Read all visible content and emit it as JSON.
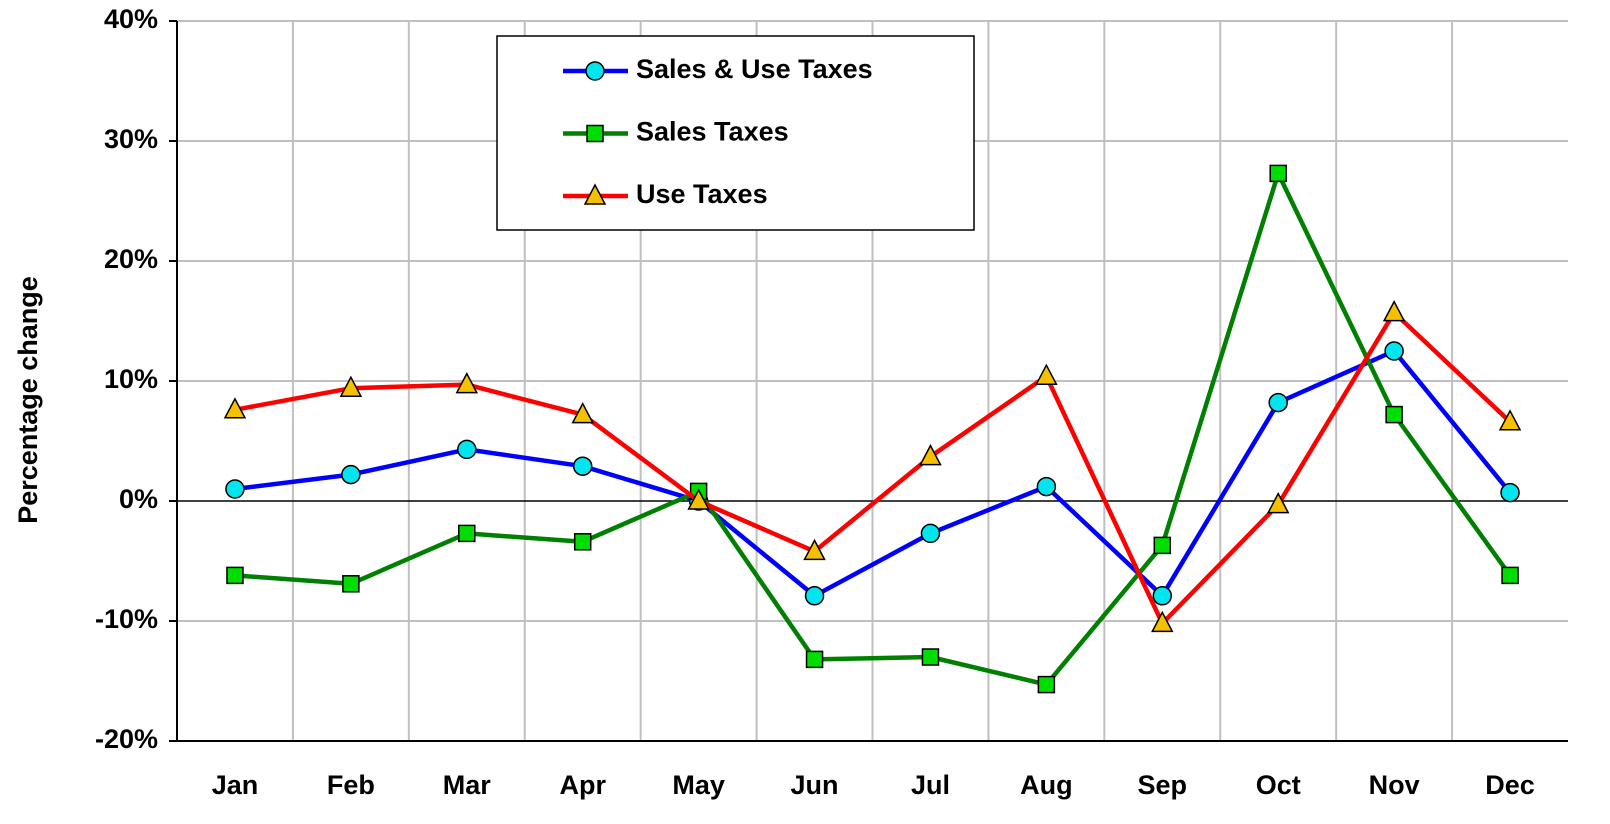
{
  "chart_data": {
    "type": "line",
    "y_label": "Percentage change",
    "categories": [
      "Jan",
      "Feb",
      "Mar",
      "Apr",
      "May",
      "Jun",
      "Jul",
      "Aug",
      "Sep",
      "Oct",
      "Nov",
      "Dec"
    ],
    "series": [
      {
        "name": "Sales & Use Taxes",
        "color": "#0000ff",
        "marker": "circle",
        "marker_color": "#00e5ee",
        "values": [
          1.0,
          2.2,
          4.3,
          2.9,
          0,
          -7.9,
          -2.7,
          1.2,
          -7.9,
          8.2,
          12.5,
          0.7
        ]
      },
      {
        "name": "Sales Taxes",
        "color": "#008000",
        "marker": "square",
        "marker_color": "#00dd00",
        "values": [
          -6.2,
          -6.9,
          -2.7,
          -3.4,
          0.8,
          -13.2,
          -13.0,
          -15.3,
          -3.7,
          27.3,
          7.2,
          -6.2
        ]
      },
      {
        "name": "Use Taxes",
        "color": "#ff0000",
        "marker": "triangle",
        "marker_color": "#f5c000",
        "values": [
          7.6,
          9.4,
          9.7,
          7.2,
          0,
          -4.2,
          3.7,
          10.4,
          -10.2,
          -0.3,
          15.7,
          6.6
        ]
      }
    ],
    "ylim": [
      -20,
      40
    ],
    "yticks": [
      {
        "value": -20,
        "label": "-20%"
      },
      {
        "value": -10,
        "label": "-10%"
      },
      {
        "value": 0,
        "label": "0%"
      },
      {
        "value": 10,
        "label": "10%"
      },
      {
        "value": 20,
        "label": "20%"
      },
      {
        "value": 30,
        "label": "30%"
      },
      {
        "value": 40,
        "label": "40%"
      }
    ],
    "grid": true,
    "legend": "top-center"
  }
}
